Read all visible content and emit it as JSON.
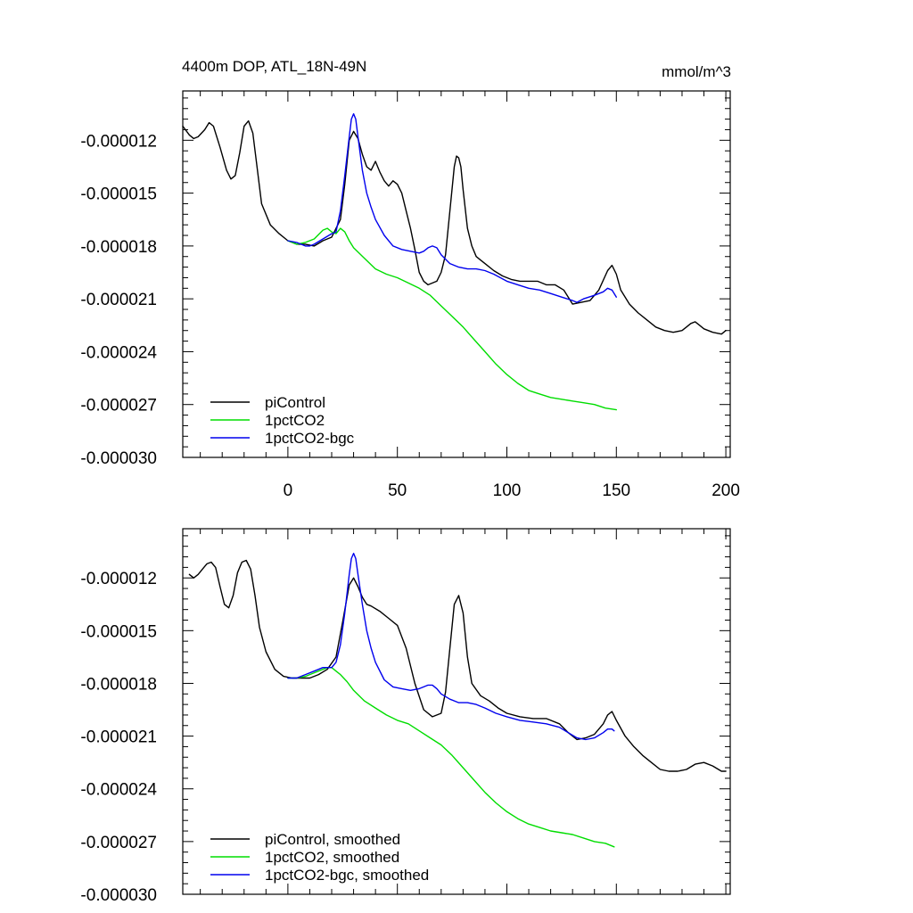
{
  "chart_data": [
    {
      "type": "line",
      "title": "4400m DOP, ATL_18N-49N",
      "units": "mmol/m^3",
      "xlabel": "",
      "ylabel": "",
      "xlim": [
        -48,
        202
      ],
      "ylim": [
        -3e-05,
        -9.2e-06
      ],
      "x_ticks": [
        0,
        50,
        100,
        150,
        200
      ],
      "x_tick_labels": [
        "0",
        "50",
        "100",
        "150",
        "200"
      ],
      "y_ticks": [
        -1.2e-05,
        -1.5e-05,
        -1.8e-05,
        -2.1e-05,
        -2.4e-05,
        -2.7e-05,
        -3e-05
      ],
      "y_tick_labels": [
        "-0.000012",
        "-0.000015",
        "-0.000018",
        "-0.000021",
        "-0.000024",
        "-0.000027",
        "-0.000030"
      ],
      "legend_position": "bottom-left",
      "series": [
        {
          "name": "piControl",
          "color": "#000000",
          "x": [
            -48,
            -45,
            -43,
            -41,
            -38,
            -36,
            -34,
            -31,
            -28,
            -26,
            -24,
            -22,
            -20,
            -18,
            -16,
            -14,
            -12,
            -8,
            -4,
            0,
            4,
            8,
            12,
            16,
            20,
            24,
            26,
            28,
            30,
            32,
            34,
            36,
            38,
            40,
            42,
            44,
            46,
            48,
            50,
            52,
            54,
            56,
            58,
            60,
            62,
            64,
            66,
            68,
            70,
            72,
            74,
            76,
            77,
            78,
            79,
            80,
            82,
            84,
            86,
            88,
            90,
            94,
            98,
            102,
            106,
            110,
            114,
            118,
            122,
            126,
            130,
            134,
            138,
            142,
            146,
            148,
            150,
            152,
            156,
            160,
            164,
            168,
            172,
            176,
            180,
            182,
            184,
            186,
            188,
            190,
            194,
            198,
            200
          ],
          "y": [
            -1.12e-05,
            -1.17e-05,
            -1.19e-05,
            -1.18e-05,
            -1.14e-05,
            -1.1e-05,
            -1.12e-05,
            -1.24e-05,
            -1.37e-05,
            -1.42e-05,
            -1.4e-05,
            -1.27e-05,
            -1.12e-05,
            -1.09e-05,
            -1.16e-05,
            -1.36e-05,
            -1.56e-05,
            -1.68e-05,
            -1.73e-05,
            -1.77e-05,
            -1.79e-05,
            -1.79e-05,
            -1.8e-05,
            -1.77e-05,
            -1.75e-05,
            -1.65e-05,
            -1.45e-05,
            -1.2e-05,
            -1.15e-05,
            -1.19e-05,
            -1.28e-05,
            -1.35e-05,
            -1.37e-05,
            -1.32e-05,
            -1.38e-05,
            -1.43e-05,
            -1.46e-05,
            -1.43e-05,
            -1.45e-05,
            -1.5e-05,
            -1.6e-05,
            -1.7e-05,
            -1.82e-05,
            -1.95e-05,
            -2e-05,
            -2.02e-05,
            -2.01e-05,
            -2e-05,
            -1.95e-05,
            -1.85e-05,
            -1.6e-05,
            -1.35e-05,
            -1.29e-05,
            -1.3e-05,
            -1.35e-05,
            -1.48e-05,
            -1.7e-05,
            -1.8e-05,
            -1.86e-05,
            -1.88e-05,
            -1.9e-05,
            -1.94e-05,
            -1.97e-05,
            -1.99e-05,
            -2e-05,
            -2e-05,
            -2e-05,
            -2.02e-05,
            -2.02e-05,
            -2.05e-05,
            -2.13e-05,
            -2.12e-05,
            -2.11e-05,
            -2.05e-05,
            -1.94e-05,
            -1.91e-05,
            -1.96e-05,
            -2.05e-05,
            -2.13e-05,
            -2.18e-05,
            -2.22e-05,
            -2.26e-05,
            -2.28e-05,
            -2.29e-05,
            -2.28e-05,
            -2.26e-05,
            -2.24e-05,
            -2.23e-05,
            -2.25e-05,
            -2.27e-05,
            -2.29e-05,
            -2.3e-05,
            -2.28e-05
          ]
        },
        {
          "name": "1pctCO2",
          "color": "#00dd00",
          "x": [
            0,
            4,
            8,
            12,
            16,
            18,
            20,
            22,
            24,
            26,
            28,
            30,
            35,
            40,
            45,
            50,
            55,
            60,
            65,
            70,
            75,
            80,
            85,
            90,
            95,
            100,
            105,
            110,
            115,
            120,
            125,
            130,
            135,
            140,
            145,
            150
          ],
          "y": [
            -1.77e-05,
            -1.79e-05,
            -1.78e-05,
            -1.76e-05,
            -1.71e-05,
            -1.7e-05,
            -1.72e-05,
            -1.73e-05,
            -1.7e-05,
            -1.72e-05,
            -1.77e-05,
            -1.81e-05,
            -1.87e-05,
            -1.93e-05,
            -1.96e-05,
            -1.98e-05,
            -2.01e-05,
            -2.04e-05,
            -2.08e-05,
            -2.14e-05,
            -2.2e-05,
            -2.26e-05,
            -2.33e-05,
            -2.4e-05,
            -2.47e-05,
            -2.53e-05,
            -2.58e-05,
            -2.62e-05,
            -2.64e-05,
            -2.66e-05,
            -2.67e-05,
            -2.68e-05,
            -2.69e-05,
            -2.7e-05,
            -2.72e-05,
            -2.73e-05
          ]
        },
        {
          "name": "1pctCO2-bgc",
          "color": "#0000ee",
          "x": [
            0,
            4,
            8,
            10,
            12,
            16,
            20,
            22,
            24,
            26,
            28,
            29,
            30,
            31,
            32,
            34,
            36,
            38,
            40,
            44,
            48,
            52,
            56,
            60,
            62,
            64,
            66,
            68,
            70,
            74,
            78,
            82,
            86,
            90,
            94,
            100,
            105,
            110,
            115,
            120,
            125,
            130,
            132,
            135,
            140,
            144,
            146,
            148,
            150
          ],
          "y": [
            -1.77e-05,
            -1.78e-05,
            -1.8e-05,
            -1.8e-05,
            -1.79e-05,
            -1.76e-05,
            -1.73e-05,
            -1.72e-05,
            -1.6e-05,
            -1.4e-05,
            -1.18e-05,
            -1.08e-05,
            -1.05e-05,
            -1.08e-05,
            -1.18e-05,
            -1.37e-05,
            -1.5e-05,
            -1.58e-05,
            -1.65e-05,
            -1.74e-05,
            -1.8e-05,
            -1.82e-05,
            -1.83e-05,
            -1.84e-05,
            -1.83e-05,
            -1.81e-05,
            -1.8e-05,
            -1.81e-05,
            -1.85e-05,
            -1.9e-05,
            -1.92e-05,
            -1.93e-05,
            -1.93e-05,
            -1.94e-05,
            -1.96e-05,
            -2e-05,
            -2.02e-05,
            -2.04e-05,
            -2.05e-05,
            -2.07e-05,
            -2.09e-05,
            -2.11e-05,
            -2.12e-05,
            -2.1e-05,
            -2.08e-05,
            -2.06e-05,
            -2.04e-05,
            -2.05e-05,
            -2.09e-05
          ]
        }
      ]
    },
    {
      "type": "line",
      "title": "",
      "units": "",
      "xlabel": "",
      "ylabel": "",
      "xlim": [
        -48,
        202
      ],
      "ylim": [
        -3e-05,
        -9.2e-06
      ],
      "x_ticks": [
        0,
        50,
        100,
        150,
        200
      ],
      "x_tick_labels": [],
      "y_ticks": [
        -1.2e-05,
        -1.5e-05,
        -1.8e-05,
        -2.1e-05,
        -2.4e-05,
        -2.7e-05,
        -3e-05
      ],
      "y_tick_labels": [
        "-0.000012",
        "-0.000015",
        "-0.000018",
        "-0.000021",
        "-0.000024",
        "-0.000027",
        "-0.000030"
      ],
      "legend_position": "bottom-left",
      "series": [
        {
          "name": "piControl, smoothed",
          "color": "#000000",
          "x": [
            -45,
            -43,
            -41,
            -39,
            -37,
            -35,
            -33,
            -31,
            -29,
            -27,
            -25,
            -23,
            -21,
            -19,
            -17,
            -15,
            -13,
            -10,
            -6,
            -2,
            2,
            6,
            10,
            14,
            18,
            22,
            25,
            28,
            30,
            32,
            34,
            36,
            38,
            42,
            46,
            50,
            54,
            58,
            62,
            66,
            70,
            72,
            74,
            76,
            78,
            80,
            82,
            84,
            88,
            92,
            96,
            100,
            106,
            112,
            118,
            124,
            128,
            132,
            136,
            140,
            144,
            146,
            148,
            150,
            154,
            158,
            162,
            166,
            170,
            174,
            178,
            182,
            186,
            190,
            194,
            198,
            200
          ],
          "y": [
            -1.18e-05,
            -1.2e-05,
            -1.18e-05,
            -1.15e-05,
            -1.12e-05,
            -1.11e-05,
            -1.14e-05,
            -1.25e-05,
            -1.35e-05,
            -1.37e-05,
            -1.3e-05,
            -1.17e-05,
            -1.11e-05,
            -1.1e-05,
            -1.15e-05,
            -1.3e-05,
            -1.48e-05,
            -1.62e-05,
            -1.72e-05,
            -1.76e-05,
            -1.77e-05,
            -1.77e-05,
            -1.77e-05,
            -1.75e-05,
            -1.72e-05,
            -1.65e-05,
            -1.45e-05,
            -1.24e-05,
            -1.2e-05,
            -1.25e-05,
            -1.31e-05,
            -1.35e-05,
            -1.36e-05,
            -1.39e-05,
            -1.43e-05,
            -1.47e-05,
            -1.6e-05,
            -1.8e-05,
            -1.95e-05,
            -1.99e-05,
            -1.97e-05,
            -1.85e-05,
            -1.6e-05,
            -1.35e-05,
            -1.3e-05,
            -1.4e-05,
            -1.65e-05,
            -1.8e-05,
            -1.87e-05,
            -1.9e-05,
            -1.94e-05,
            -1.97e-05,
            -1.99e-05,
            -2e-05,
            -2e-05,
            -2.03e-05,
            -2.08e-05,
            -2.12e-05,
            -2.11e-05,
            -2.09e-05,
            -2.03e-05,
            -1.98e-05,
            -1.96e-05,
            -2.01e-05,
            -2.1e-05,
            -2.16e-05,
            -2.21e-05,
            -2.25e-05,
            -2.29e-05,
            -2.3e-05,
            -2.3e-05,
            -2.29e-05,
            -2.26e-05,
            -2.25e-05,
            -2.27e-05,
            -2.3e-05,
            -2.3e-05
          ]
        },
        {
          "name": "1pctCO2, smoothed",
          "color": "#00dd00",
          "x": [
            0,
            4,
            8,
            12,
            16,
            18,
            20,
            22,
            24,
            27,
            30,
            35,
            40,
            45,
            50,
            55,
            60,
            65,
            70,
            75,
            80,
            85,
            90,
            95,
            100,
            105,
            110,
            115,
            120,
            125,
            130,
            135,
            140,
            145,
            149
          ],
          "y": [
            -1.77e-05,
            -1.77e-05,
            -1.76e-05,
            -1.74e-05,
            -1.72e-05,
            -1.71e-05,
            -1.71e-05,
            -1.73e-05,
            -1.75e-05,
            -1.79e-05,
            -1.84e-05,
            -1.9e-05,
            -1.94e-05,
            -1.98e-05,
            -2.01e-05,
            -2.03e-05,
            -2.07e-05,
            -2.11e-05,
            -2.15e-05,
            -2.21e-05,
            -2.28e-05,
            -2.35e-05,
            -2.42e-05,
            -2.48e-05,
            -2.53e-05,
            -2.57e-05,
            -2.6e-05,
            -2.62e-05,
            -2.64e-05,
            -2.65e-05,
            -2.66e-05,
            -2.68e-05,
            -2.7e-05,
            -2.71e-05,
            -2.73e-05
          ]
        },
        {
          "name": "1pctCO2-bgc, smoothed",
          "color": "#0000ee",
          "x": [
            0,
            4,
            8,
            12,
            16,
            20,
            22,
            24,
            26,
            28,
            29,
            30,
            31,
            32,
            34,
            36,
            38,
            40,
            44,
            48,
            52,
            56,
            60,
            64,
            66,
            68,
            70,
            74,
            78,
            82,
            86,
            90,
            95,
            100,
            106,
            112,
            118,
            124,
            128,
            132,
            136,
            140,
            144,
            146,
            148,
            149
          ],
          "y": [
            -1.77e-05,
            -1.77e-05,
            -1.75e-05,
            -1.73e-05,
            -1.71e-05,
            -1.71e-05,
            -1.68e-05,
            -1.58e-05,
            -1.4e-05,
            -1.18e-05,
            -1.09e-05,
            -1.06e-05,
            -1.09e-05,
            -1.18e-05,
            -1.35e-05,
            -1.5e-05,
            -1.6e-05,
            -1.68e-05,
            -1.78e-05,
            -1.82e-05,
            -1.83e-05,
            -1.84e-05,
            -1.83e-05,
            -1.81e-05,
            -1.81e-05,
            -1.83e-05,
            -1.86e-05,
            -1.89e-05,
            -1.91e-05,
            -1.91e-05,
            -1.92e-05,
            -1.94e-05,
            -1.97e-05,
            -1.99e-05,
            -2.01e-05,
            -2.02e-05,
            -2.03e-05,
            -2.05e-05,
            -2.08e-05,
            -2.11e-05,
            -2.12e-05,
            -2.11e-05,
            -2.08e-05,
            -2.06e-05,
            -2.06e-05,
            -2.07e-05
          ]
        }
      ]
    }
  ]
}
